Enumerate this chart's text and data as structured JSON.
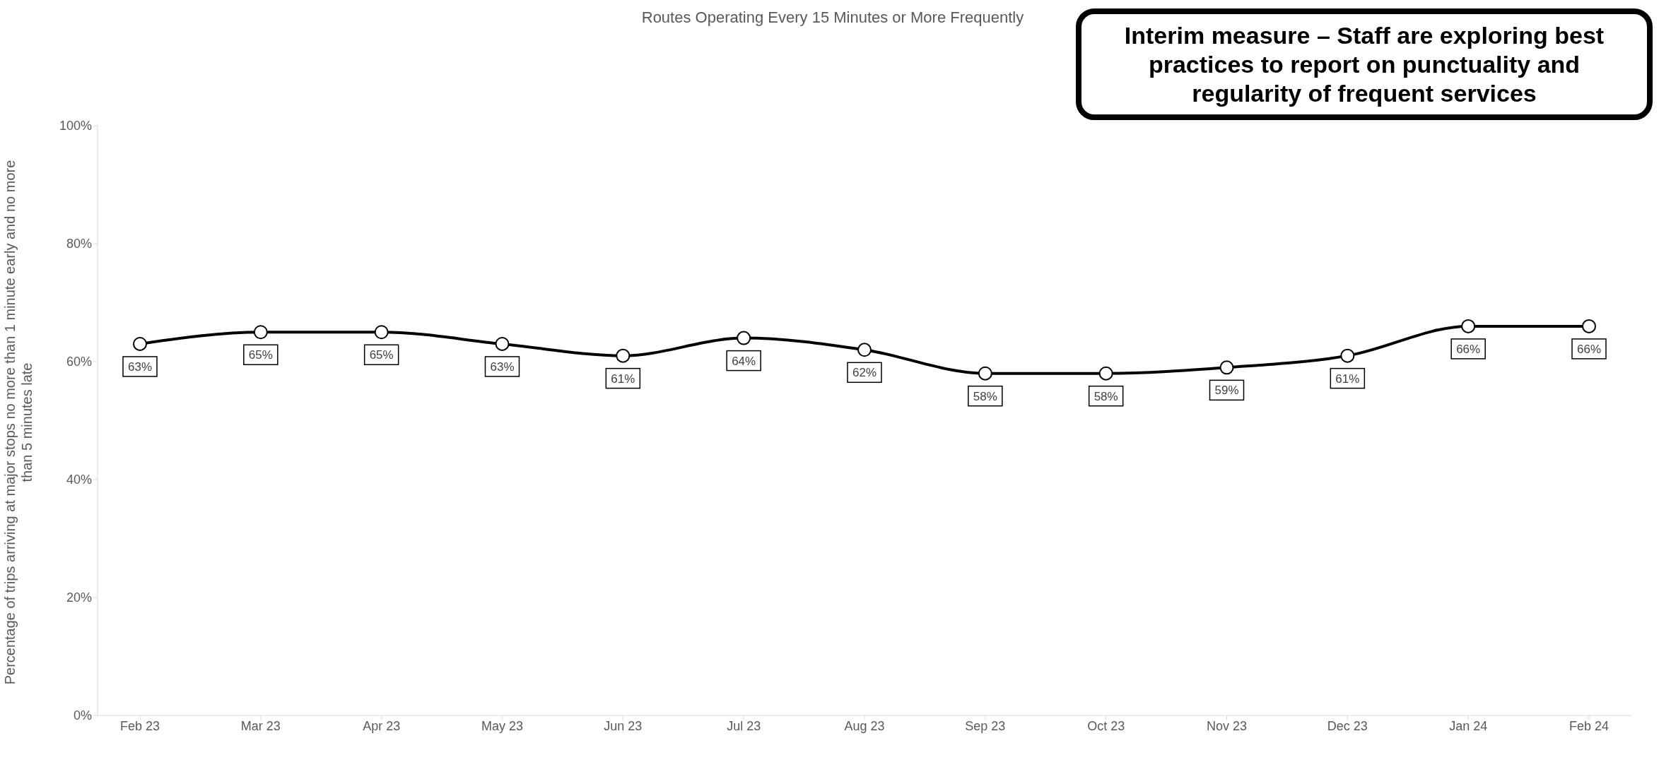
{
  "chart_data": {
    "type": "line",
    "subtitle": "Routes Operating Every 15 Minutes or More Frequently",
    "ylabel": "Percentage of trips arriving at major stops no more than 1 minute early and no more than 5 minutes late",
    "annotations": [
      "Interim measure – Staff are exploring best practices to report on punctuality and regularity of frequent services"
    ],
    "categories": [
      "Feb 23",
      "Mar 23",
      "Apr 23",
      "May 23",
      "Jun 23",
      "Jul 23",
      "Aug 23",
      "Sep 23",
      "Oct 23",
      "Nov 23",
      "Dec 23",
      "Jan 24",
      "Feb 24"
    ],
    "series": [
      {
        "color": "#000000",
        "values": [
          63,
          65,
          65,
          63,
          61,
          64,
          62,
          58,
          58,
          59,
          61,
          66,
          66
        ],
        "value_labels": [
          "63%",
          "65%",
          "65%",
          "63%",
          "61%",
          "64%",
          "62%",
          "58%",
          "58%",
          "59%",
          "61%",
          "66%",
          "66%"
        ]
      }
    ],
    "ylim": [
      0,
      100
    ],
    "yticks": [
      {
        "value": 0,
        "label": "0%"
      },
      {
        "value": 20,
        "label": "20%"
      },
      {
        "value": 40,
        "label": "40%"
      },
      {
        "value": 60,
        "label": "60%"
      },
      {
        "value": 80,
        "label": "80%"
      },
      {
        "value": 100,
        "label": "100%"
      }
    ],
    "marker": "circle",
    "line_style": "solid",
    "grid": false
  }
}
